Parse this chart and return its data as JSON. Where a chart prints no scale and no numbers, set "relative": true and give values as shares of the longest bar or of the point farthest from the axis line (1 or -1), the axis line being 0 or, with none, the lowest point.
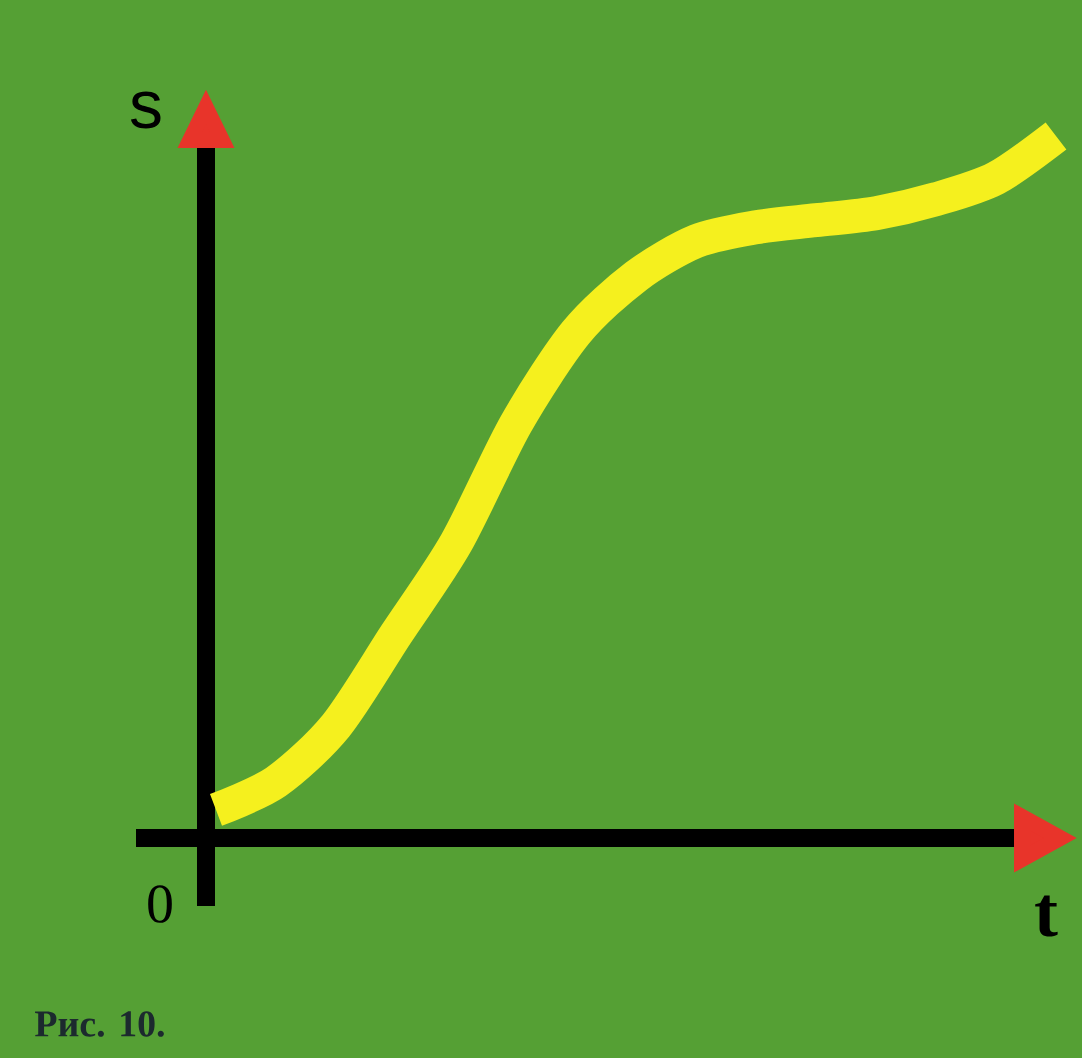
{
  "chart_data": {
    "type": "line",
    "relative": true,
    "xlabel": "t",
    "ylabel": "s",
    "annotations": [
      "0",
      "Рис. 10."
    ],
    "categories": [
      null,
      null,
      null,
      null,
      null,
      null,
      null,
      null,
      null,
      null,
      null,
      null,
      null,
      null,
      null
    ],
    "series": [
      {
        "color": "#f5f01e",
        "values": [
          0.04,
          0.08,
          0.16,
          0.29,
          0.42,
          0.59,
          0.72,
          0.8,
          0.85,
          0.87,
          0.88,
          0.89,
          0.91,
          0.94,
          1
        ]
      }
    ]
  }
}
